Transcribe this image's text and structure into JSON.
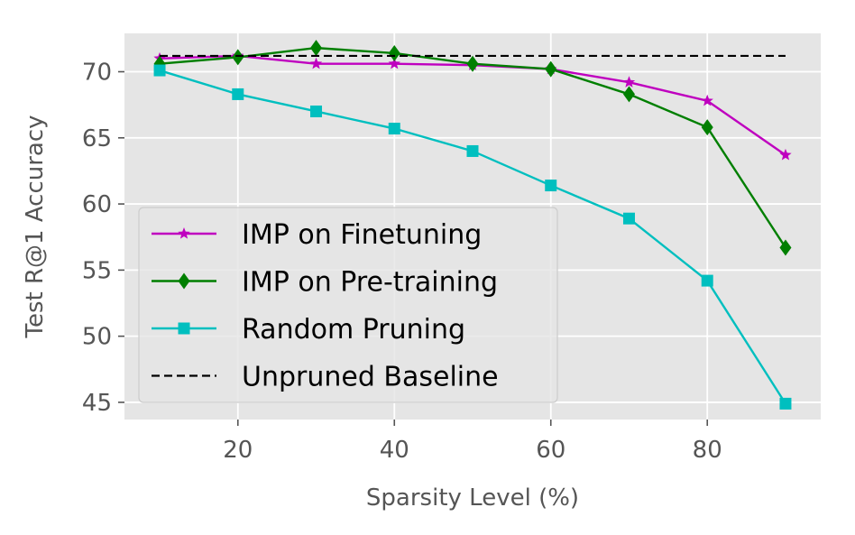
{
  "chart_data": {
    "type": "line",
    "title": "",
    "xlabel": "Sparsity Level (%)",
    "ylabel": "Test R@1 Accuracy",
    "xlim": [
      5.5,
      94.5
    ],
    "ylim": [
      43.7,
      72.9
    ],
    "xticks": [
      20,
      40,
      60,
      80
    ],
    "yticks": [
      45,
      50,
      55,
      60,
      65,
      70
    ],
    "grid": true,
    "legend_position": "center-left",
    "x": [
      10,
      20,
      30,
      40,
      50,
      60,
      70,
      80,
      90
    ],
    "series": [
      {
        "name": "IMP on Finetuning",
        "color": "#bf00bf",
        "marker": "star",
        "linestyle": "solid",
        "values": [
          71.0,
          71.2,
          70.6,
          70.6,
          70.5,
          70.2,
          69.2,
          67.8,
          63.7
        ]
      },
      {
        "name": "IMP on Pre-training",
        "color": "#007f00",
        "marker": "diamond",
        "linestyle": "solid",
        "values": [
          70.6,
          71.1,
          71.8,
          71.4,
          70.6,
          70.2,
          68.3,
          65.8,
          56.7
        ]
      },
      {
        "name": "Random Pruning",
        "color": "#00bfbf",
        "marker": "square",
        "linestyle": "solid",
        "values": [
          70.1,
          68.3,
          67.0,
          65.7,
          64.0,
          61.4,
          58.9,
          54.2,
          44.9
        ]
      },
      {
        "name": "Unpruned Baseline",
        "color": "#000000",
        "marker": "none",
        "linestyle": "dashed",
        "values": [
          71.2,
          71.2,
          71.2,
          71.2,
          71.2,
          71.2,
          71.2,
          71.2,
          71.2
        ]
      }
    ]
  }
}
